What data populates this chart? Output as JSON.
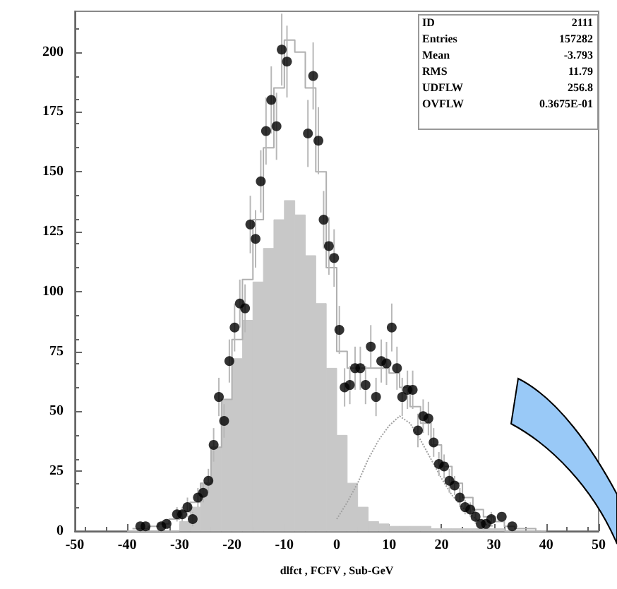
{
  "chart_data": {
    "type": "histogram",
    "xlabel": "dlfct , FCFV , Sub-GeV",
    "xlim": [
      -50,
      50
    ],
    "xticks": [
      -50,
      -40,
      -30,
      -20,
      -10,
      0,
      10,
      20,
      30,
      40,
      50
    ],
    "ylim": [
      0,
      217
    ],
    "yticks": [
      0,
      25,
      50,
      75,
      100,
      125,
      150,
      175,
      200
    ],
    "grid": false,
    "annotations": [
      "ID 2111",
      "Entries 157282",
      "Mean -3.793",
      "RMS 11.79",
      "UDFLW 256.8",
      "OVFLW 0.3675E-01"
    ],
    "series": [
      {
        "color": "#c8c8c8",
        "bins": [
          -40,
          -38,
          -36,
          -34,
          -32,
          -30,
          -28,
          -26,
          -24,
          -22,
          -20,
          -18,
          -16,
          -14,
          -12,
          -10,
          -8,
          -6,
          -4,
          -2,
          0,
          2,
          4,
          6,
          8,
          10,
          12,
          14,
          16,
          18,
          20,
          22,
          24,
          26,
          28,
          30,
          32,
          34,
          36,
          38,
          40
        ],
        "values": [
          0,
          0,
          0,
          0,
          0,
          4,
          10,
          20,
          35,
          55,
          72,
          88,
          104,
          118,
          130,
          138,
          132,
          115,
          95,
          68,
          40,
          20,
          10,
          4,
          3,
          2,
          2,
          2,
          2,
          1,
          1,
          1,
          1,
          1,
          1,
          1,
          0,
          0,
          0,
          0
        ]
      },
      {
        "type": "step",
        "color": "#b0b0b0",
        "x": [
          -39,
          -37,
          -35,
          -33,
          -31,
          -29,
          -27,
          -25,
          -23,
          -21,
          -19,
          -17,
          -15,
          -13,
          -11,
          -9,
          -7,
          -5,
          -3,
          -1,
          1,
          3,
          5,
          7,
          9,
          11,
          13,
          15,
          17,
          19,
          21,
          23,
          25,
          27,
          29,
          31,
          33,
          35,
          37,
          39
        ],
        "values": [
          1,
          1,
          2,
          3,
          5,
          8,
          12,
          20,
          35,
          55,
          80,
          105,
          130,
          160,
          185,
          205,
          200,
          185,
          150,
          110,
          75,
          68,
          68,
          68,
          68,
          66,
          60,
          52,
          45,
          36,
          27,
          20,
          14,
          9,
          6,
          4,
          2,
          1,
          1,
          0
        ]
      },
      {
        "type": "line",
        "color": "#a0a0a0",
        "line_style": "dotted",
        "x": [
          0,
          2,
          4,
          6,
          8,
          10,
          12,
          14,
          16,
          18,
          20,
          22,
          24,
          26,
          28,
          30
        ],
        "values": [
          5,
          12,
          20,
          30,
          38,
          44,
          48,
          45,
          38,
          30,
          22,
          15,
          10,
          6,
          3,
          2
        ]
      },
      {
        "type": "scatter",
        "color": "#000000",
        "marker": "circle",
        "x": [
          -37.5,
          -36.5,
          -33.5,
          -32.5,
          -30.5,
          -29.5,
          -28.5,
          -27.5,
          -26.5,
          -25.5,
          -24.5,
          -23.5,
          -22.5,
          -21.5,
          -20.5,
          -19.5,
          -18.5,
          -17.5,
          -16.5,
          -15.5,
          -14.5,
          -13.5,
          -12.5,
          -11.5,
          -10.5,
          -9.5,
          -4.5,
          -5.5,
          -3.5,
          -2.5,
          -1.5,
          -0.5,
          0.5,
          1.5,
          2.5,
          3.5,
          4.5,
          5.5,
          6.5,
          7.5,
          8.5,
          9.5,
          10.5,
          11.5,
          12.5,
          13.5,
          14.5,
          15.5,
          16.5,
          17.5,
          18.5,
          19.5,
          20.5,
          21.5,
          22.5,
          23.5,
          24.5,
          25.5,
          26.5,
          27.5,
          28.5,
          29.5,
          31.5,
          33.5
        ],
        "values": [
          2,
          2,
          2,
          3,
          7,
          7,
          10,
          5,
          14,
          16,
          21,
          36,
          56,
          46,
          71,
          85,
          95,
          93,
          128,
          122,
          146,
          167,
          180,
          169,
          201,
          196,
          190,
          166,
          163,
          130,
          119,
          114,
          84,
          60,
          61,
          68,
          68,
          61,
          77,
          56,
          71,
          70,
          85,
          68,
          56,
          59,
          59,
          42,
          48,
          47,
          37,
          28,
          27,
          21,
          19,
          14,
          10,
          9,
          6,
          3,
          3,
          5,
          6,
          2
        ],
        "errors": [
          null,
          null,
          null,
          null,
          3,
          3,
          4,
          3,
          4,
          4,
          5,
          7,
          8,
          7,
          9,
          10,
          10,
          10,
          12,
          12,
          13,
          14,
          14,
          14,
          15,
          15,
          14,
          14,
          14,
          12,
          12,
          12,
          10,
          8,
          8,
          9,
          9,
          8,
          9,
          8,
          9,
          9,
          10,
          9,
          8,
          8,
          8,
          7,
          7,
          7,
          6,
          5,
          5,
          5,
          4,
          4,
          3,
          3,
          3,
          null,
          null,
          3,
          null,
          null
        ]
      }
    ]
  }
}
